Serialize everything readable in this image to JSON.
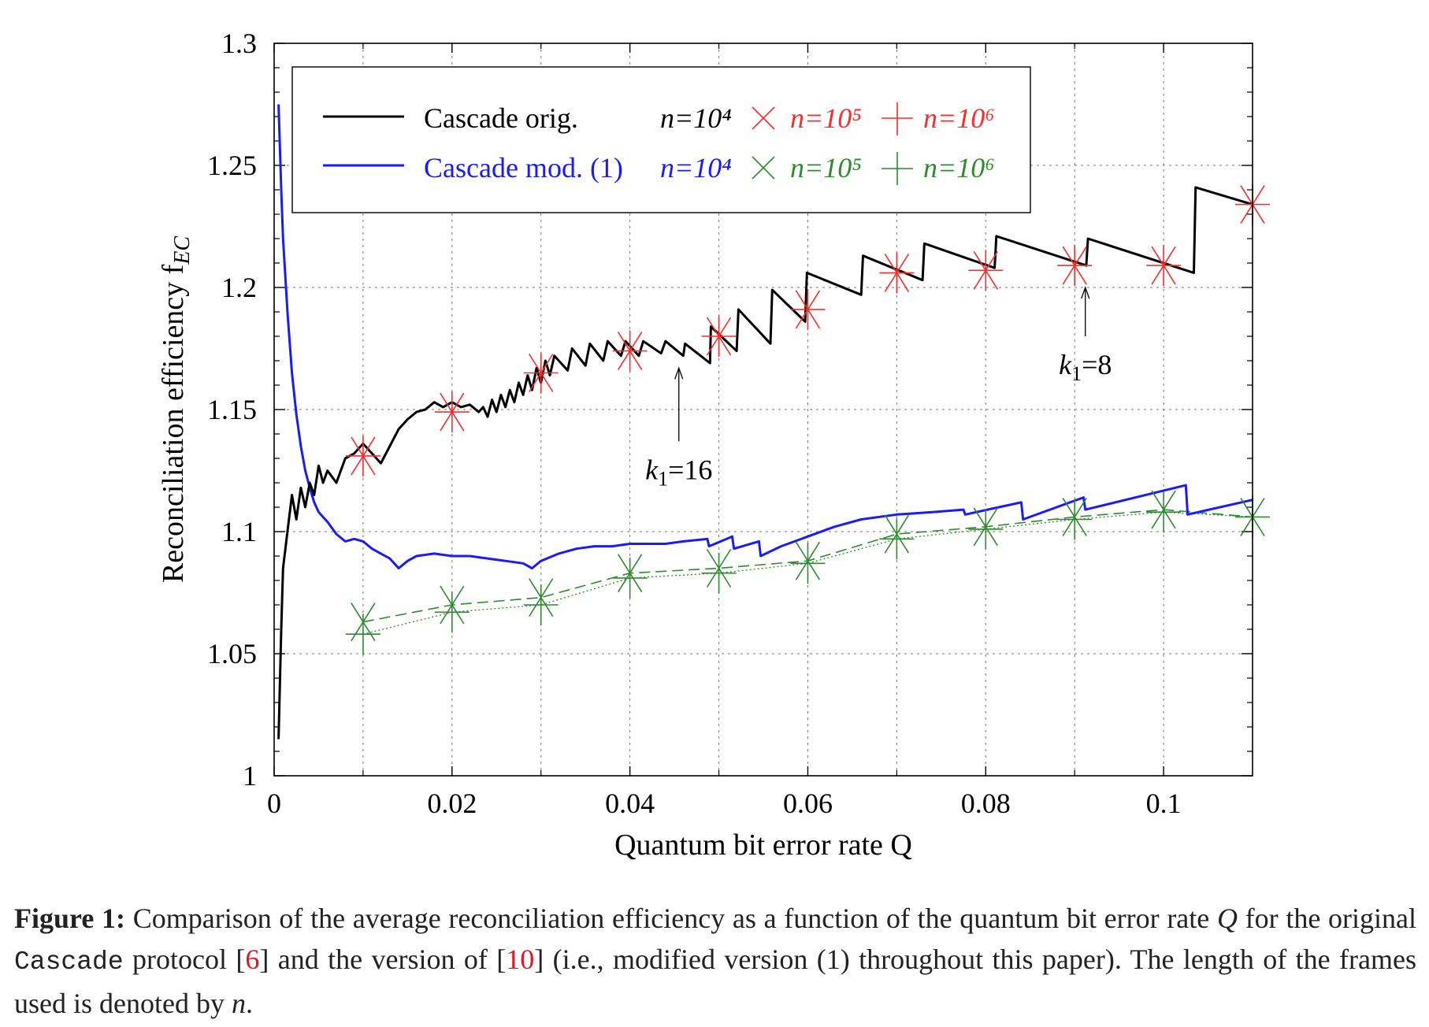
{
  "chart_data": {
    "type": "line",
    "xlabel": "Quantum bit error rate Q",
    "ylabel": "Reconciliation efficiency f",
    "ylabel_sub": "EC",
    "xlim": [
      0,
      0.11
    ],
    "ylim": [
      1.0,
      1.3
    ],
    "xticks": [
      0,
      0.02,
      0.04,
      0.06,
      0.08,
      0.1
    ],
    "xtick_labels": [
      "0",
      "0.02",
      "0.04",
      "0.06",
      "0.08",
      "0.1"
    ],
    "yticks": [
      1,
      1.05,
      1.1,
      1.15,
      1.2,
      1.25,
      1.3
    ],
    "ytick_labels": [
      "1",
      "1.05",
      "1.1",
      "1.15",
      "1.2",
      "1.25",
      "1.3"
    ],
    "grid": true,
    "legend_position": "top",
    "legend": {
      "row1": {
        "name": "Cascade orig.",
        "n4": "n=10⁴",
        "n5": "n=10⁵",
        "n6": "n=10⁶"
      },
      "row2": {
        "name": "Cascade mod. (1)",
        "n4": "n=10⁴",
        "n5": "n=10⁵",
        "n6": "n=10⁶"
      }
    },
    "colors": {
      "orig": "#000000",
      "mod": "#1a1aff",
      "orig_markers": "#ff2a2a",
      "mod_markers": "#2e8b2e"
    },
    "marker_x": [
      0.01,
      0.02,
      0.03,
      0.04,
      0.05,
      0.06,
      0.07,
      0.08,
      0.09,
      0.1,
      0.11
    ],
    "series": [
      {
        "name": "Cascade orig. n=10^4",
        "points": [
          [
            0.0005,
            1.015
          ],
          [
            0.0008,
            1.06
          ],
          [
            0.001,
            1.085
          ],
          [
            0.0015,
            1.1
          ],
          [
            0.002,
            1.115
          ],
          [
            0.0025,
            1.105
          ],
          [
            0.003,
            1.118
          ],
          [
            0.0035,
            1.11
          ],
          [
            0.004,
            1.12
          ],
          [
            0.0045,
            1.115
          ],
          [
            0.005,
            1.127
          ],
          [
            0.0055,
            1.12
          ],
          [
            0.006,
            1.125
          ],
          [
            0.007,
            1.12
          ],
          [
            0.008,
            1.13
          ],
          [
            0.009,
            1.132
          ],
          [
            0.01,
            1.136
          ],
          [
            0.011,
            1.132
          ],
          [
            0.012,
            1.128
          ],
          [
            0.013,
            1.135
          ],
          [
            0.014,
            1.142
          ],
          [
            0.015,
            1.146
          ],
          [
            0.016,
            1.149
          ],
          [
            0.017,
            1.15
          ],
          [
            0.018,
            1.153
          ],
          [
            0.019,
            1.151
          ],
          [
            0.02,
            1.153
          ],
          [
            0.021,
            1.151
          ],
          [
            0.022,
            1.152
          ],
          [
            0.023,
            1.149
          ],
          [
            0.0235,
            1.151
          ],
          [
            0.024,
            1.147
          ],
          [
            0.0245,
            1.154
          ],
          [
            0.025,
            1.149
          ],
          [
            0.0255,
            1.156
          ],
          [
            0.026,
            1.151
          ],
          [
            0.0265,
            1.158
          ],
          [
            0.027,
            1.153
          ],
          [
            0.0275,
            1.161
          ],
          [
            0.028,
            1.156
          ],
          [
            0.0285,
            1.164
          ],
          [
            0.029,
            1.158
          ],
          [
            0.0295,
            1.167
          ],
          [
            0.03,
            1.161
          ],
          [
            0.0305,
            1.17
          ],
          [
            0.031,
            1.164
          ],
          [
            0.0315,
            1.172
          ],
          [
            0.033,
            1.166
          ],
          [
            0.0335,
            1.175
          ],
          [
            0.035,
            1.168
          ],
          [
            0.0355,
            1.177
          ],
          [
            0.037,
            1.17
          ],
          [
            0.0375,
            1.178
          ],
          [
            0.039,
            1.172
          ],
          [
            0.0395,
            1.178
          ],
          [
            0.041,
            1.172
          ],
          [
            0.0415,
            1.178
          ],
          [
            0.0435,
            1.173
          ],
          [
            0.044,
            1.178
          ],
          [
            0.046,
            1.172
          ],
          [
            0.0462,
            1.177
          ],
          [
            0.049,
            1.169
          ],
          [
            0.0491,
            1.184
          ],
          [
            0.052,
            1.174
          ],
          [
            0.0522,
            1.191
          ],
          [
            0.0558,
            1.177
          ],
          [
            0.056,
            1.199
          ],
          [
            0.0597,
            1.186
          ],
          [
            0.0599,
            1.206
          ],
          [
            0.066,
            1.197
          ],
          [
            0.0662,
            1.213
          ],
          [
            0.0729,
            1.203
          ],
          [
            0.0731,
            1.218
          ],
          [
            0.081,
            1.208
          ],
          [
            0.0812,
            1.221
          ],
          [
            0.0913,
            1.209
          ],
          [
            0.0915,
            1.22
          ],
          [
            0.1034,
            1.206
          ],
          [
            0.1036,
            1.241
          ],
          [
            0.11,
            1.234
          ]
        ]
      },
      {
        "name": "Cascade orig. n=10^5",
        "marker": "x",
        "values": [
          1.131,
          1.149,
          1.165,
          1.174,
          1.18,
          1.191,
          1.206,
          1.207,
          1.209,
          1.209,
          1.234
        ]
      },
      {
        "name": "Cascade orig. n=10^6",
        "marker": "+",
        "values": [
          1.131,
          1.149,
          1.165,
          1.174,
          1.18,
          1.191,
          1.206,
          1.207,
          1.209,
          1.209,
          1.234
        ]
      },
      {
        "name": "Cascade mod. (1) n=10^4",
        "points": [
          [
            0.0005,
            1.275
          ],
          [
            0.0008,
            1.24
          ],
          [
            0.001,
            1.22
          ],
          [
            0.0015,
            1.19
          ],
          [
            0.002,
            1.165
          ],
          [
            0.0025,
            1.148
          ],
          [
            0.003,
            1.135
          ],
          [
            0.0035,
            1.125
          ],
          [
            0.004,
            1.118
          ],
          [
            0.0045,
            1.112
          ],
          [
            0.005,
            1.108
          ],
          [
            0.006,
            1.104
          ],
          [
            0.007,
            1.099
          ],
          [
            0.008,
            1.096
          ],
          [
            0.009,
            1.097
          ],
          [
            0.01,
            1.096
          ],
          [
            0.011,
            1.093
          ],
          [
            0.012,
            1.091
          ],
          [
            0.013,
            1.089
          ],
          [
            0.014,
            1.085
          ],
          [
            0.015,
            1.088
          ],
          [
            0.016,
            1.09
          ],
          [
            0.018,
            1.091
          ],
          [
            0.02,
            1.09
          ],
          [
            0.022,
            1.09
          ],
          [
            0.024,
            1.089
          ],
          [
            0.026,
            1.088
          ],
          [
            0.028,
            1.087
          ],
          [
            0.029,
            1.085
          ],
          [
            0.03,
            1.088
          ],
          [
            0.032,
            1.091
          ],
          [
            0.034,
            1.093
          ],
          [
            0.036,
            1.094
          ],
          [
            0.038,
            1.094
          ],
          [
            0.04,
            1.095
          ],
          [
            0.042,
            1.095
          ],
          [
            0.044,
            1.095
          ],
          [
            0.046,
            1.096
          ],
          [
            0.0487,
            1.097
          ],
          [
            0.0489,
            1.094
          ],
          [
            0.0515,
            1.098
          ],
          [
            0.0517,
            1.093
          ],
          [
            0.0545,
            1.096
          ],
          [
            0.0547,
            1.09
          ],
          [
            0.057,
            1.094
          ],
          [
            0.06,
            1.098
          ],
          [
            0.063,
            1.102
          ],
          [
            0.066,
            1.105
          ],
          [
            0.07,
            1.107
          ],
          [
            0.074,
            1.108
          ],
          [
            0.0775,
            1.109
          ],
          [
            0.0777,
            1.107
          ],
          [
            0.084,
            1.112
          ],
          [
            0.0842,
            1.105
          ],
          [
            0.091,
            1.114
          ],
          [
            0.0912,
            1.109
          ],
          [
            0.1025,
            1.119
          ],
          [
            0.1027,
            1.107
          ],
          [
            0.11,
            1.113
          ]
        ]
      },
      {
        "name": "Cascade mod. (1) n=10^5",
        "marker": "x",
        "dash": "dashed",
        "values": [
          1.063,
          1.07,
          1.073,
          1.083,
          1.085,
          1.088,
          1.099,
          1.102,
          1.106,
          1.109,
          1.106
        ]
      },
      {
        "name": "Cascade mod. (1) n=10^6",
        "marker": "+",
        "dash": "dotted",
        "values": [
          1.058,
          1.067,
          1.07,
          1.081,
          1.083,
          1.087,
          1.097,
          1.101,
          1.105,
          1.108,
          1.106
        ]
      }
    ],
    "annotations": [
      {
        "text_k": "k",
        "text_sub": "1",
        "text_val": "=16",
        "x": 0.0455,
        "arrow_from": 1.137,
        "arrow_to": 1.167
      },
      {
        "text_k": "k",
        "text_sub": "1",
        "text_val": "=8",
        "x": 0.0912,
        "arrow_from": 1.18,
        "arrow_to": 1.2
      }
    ]
  },
  "caption": {
    "label": "Figure 1:",
    "text1": " Comparison of the average reconciliation efficiency as a function of the quantum bit error rate ",
    "q": "Q",
    "text2": " for the original ",
    "mono": "Cascade",
    "text3": " protocol [",
    "ref1": "6",
    "text4": "] and the version of [",
    "ref2": "10",
    "text5": "] (i.e., modified version (1) throughout this paper). The length of the frames used is denoted by ",
    "n": "n",
    "text6": "."
  }
}
